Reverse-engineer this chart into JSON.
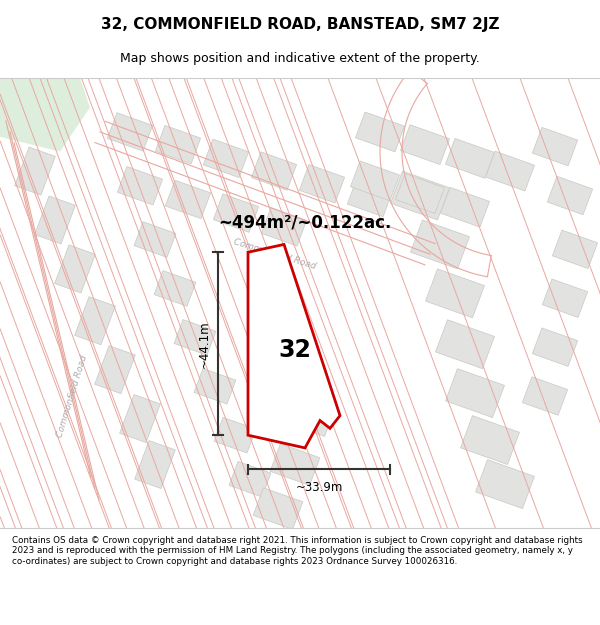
{
  "title": "32, COMMONFIELD ROAD, BANSTEAD, SM7 2JZ",
  "subtitle": "Map shows position and indicative extent of the property.",
  "footer": "Contains OS data © Crown copyright and database right 2021. This information is subject to Crown copyright and database rights 2023 and is reproduced with the permission of HM Land Registry. The polygons (including the associated geometry, namely x, y co-ordinates) are subject to Crown copyright and database rights 2023 Ordnance Survey 100026316.",
  "area_label": "~494m²/~0.122ac.",
  "width_label": "~33.9m",
  "height_label": "~44.1m",
  "plot_number": "32",
  "map_bg": "#f7f7f5",
  "road_line": "#e8a8a0",
  "block_fill": "#e2e2e0",
  "block_line": "#c8c8c4",
  "plot_line_color": "#cc0000",
  "dim_line_color": "#333333",
  "green_area": "#ddeedd",
  "road_label_color": "#b0aaaa",
  "title_fontsize": 11,
  "subtitle_fontsize": 9,
  "footer_fontsize": 6.3
}
